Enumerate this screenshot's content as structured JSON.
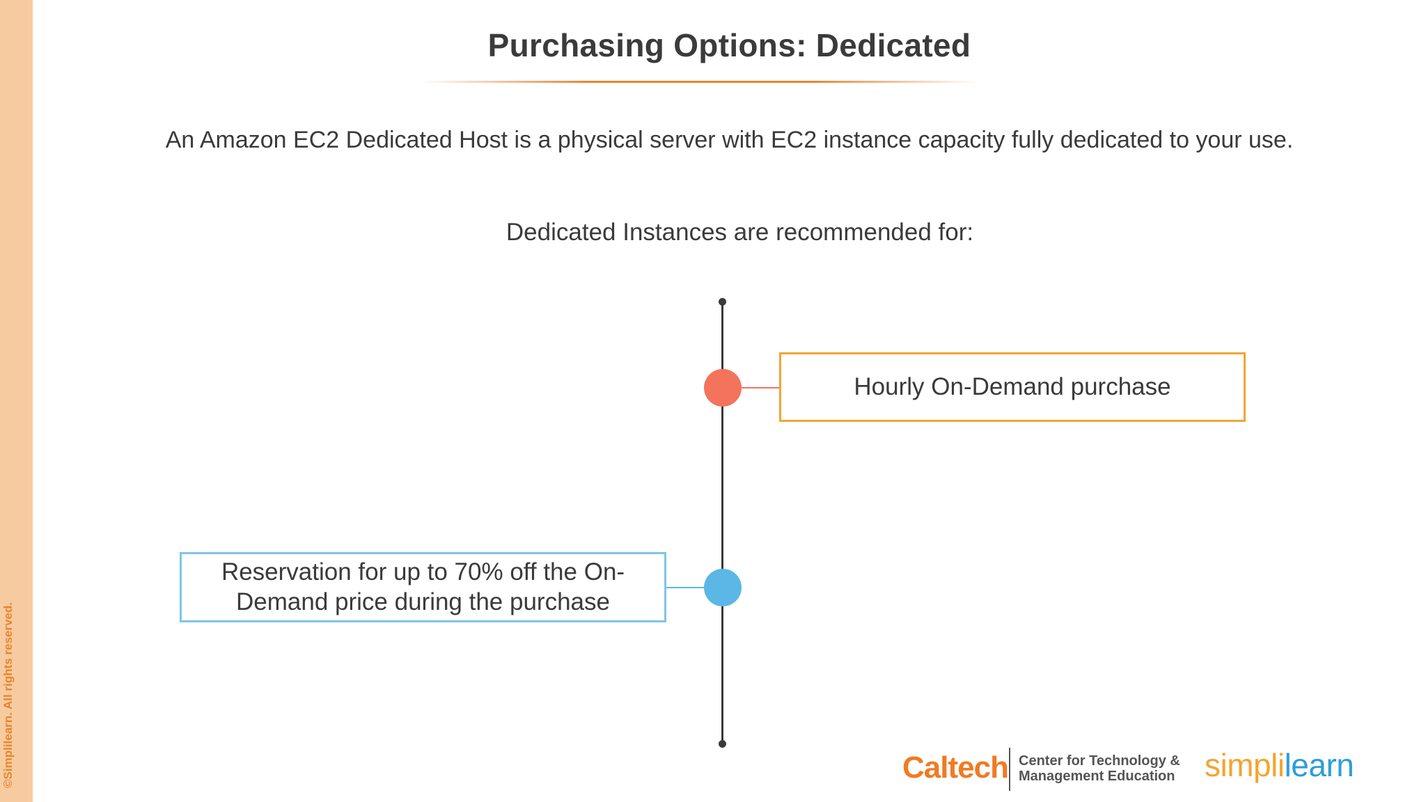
{
  "slide": {
    "title": "Purchasing Options: Dedicated",
    "intro": "An Amazon EC2 Dedicated Host is a physical server with EC2 instance capacity fully dedicated to your use.",
    "subheading": "Dedicated Instances are recommended for:"
  },
  "timeline": {
    "items": [
      {
        "label": "Hourly On-Demand purchase",
        "color": "#f4735c",
        "border_color": "#f0a636",
        "side": "right"
      },
      {
        "label": "Reservation for up to 70% off the On-Demand price during the purchase",
        "color": "#5bb7e5",
        "border_color": "#7ec6e6",
        "side": "left"
      }
    ]
  },
  "footer": {
    "copyright": "©Simplilearn. All rights reserved.",
    "caltech_logo": "Caltech",
    "caltech_line1": "Center for Technology &",
    "caltech_line2": "Management Education",
    "simplilearn_part1": "simpl",
    "simplilearn_part2": "i",
    "simplilearn_part3": "learn"
  }
}
